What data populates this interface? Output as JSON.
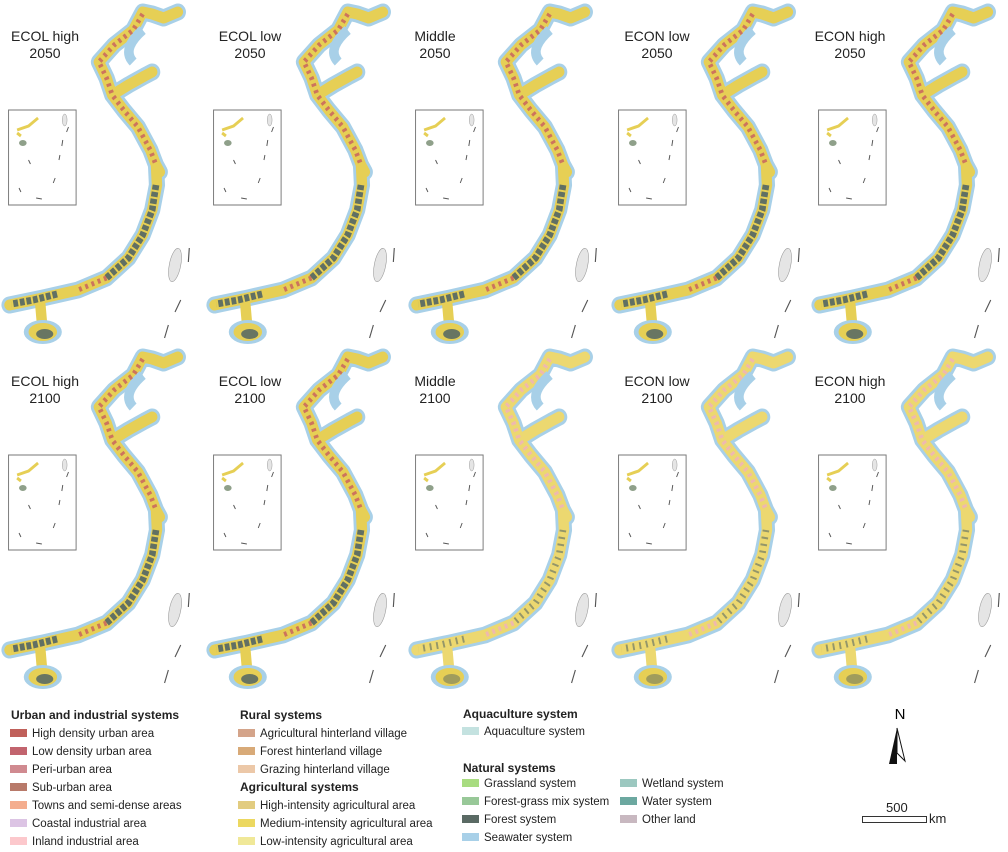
{
  "panels": [
    {
      "title_line1": "ECOL high",
      "title_line2": "2050",
      "variant": "a"
    },
    {
      "title_line1": "ECOL low",
      "title_line2": "2050",
      "variant": "a"
    },
    {
      "title_line1": "Middle",
      "title_line2": "2050",
      "variant": "a"
    },
    {
      "title_line1": "ECON low",
      "title_line2": "2050",
      "variant": "a"
    },
    {
      "title_line1": "ECON high",
      "title_line2": "2050",
      "variant": "a"
    },
    {
      "title_line1": "ECOL high",
      "title_line2": "2100",
      "variant": "a"
    },
    {
      "title_line1": "ECOL low",
      "title_line2": "2100",
      "variant": "a"
    },
    {
      "title_line1": "Middle",
      "title_line2": "2100",
      "variant": "b"
    },
    {
      "title_line1": "ECON low",
      "title_line2": "2100",
      "variant": "b"
    },
    {
      "title_line1": "ECON high",
      "title_line2": "2100",
      "variant": "b"
    }
  ],
  "legend": {
    "urban": {
      "heading": "Urban and industrial systems",
      "items": [
        {
          "label": "High density urban area",
          "color": "#c0605a"
        },
        {
          "label": "Low density urban area",
          "color": "#c2646e"
        },
        {
          "label": "Peri-urban area",
          "color": "#d08a90"
        },
        {
          "label": "Sub-urban area",
          "color": "#b87a6a"
        },
        {
          "label": "Towns and semi-dense areas",
          "color": "#f4ad8e"
        },
        {
          "label": "Coastal industrial area",
          "color": "#dcc4e4"
        },
        {
          "label": "Inland industrial area",
          "color": "#fcc8cc"
        }
      ]
    },
    "rural": {
      "heading": "Rural systems",
      "items": [
        {
          "label": "Agricultural hinterland village",
          "color": "#d4a48a"
        },
        {
          "label": "Forest hinterland village",
          "color": "#d8aa78"
        },
        {
          "label": "Grazing hinterland village",
          "color": "#ecc8a8"
        }
      ]
    },
    "agricultural": {
      "heading": "Agricultural systems",
      "items": [
        {
          "label": "High-intensity agricultural area",
          "color": "#e2cc80"
        },
        {
          "label": "Medium-intensity agricultural area",
          "color": "#ecd860"
        },
        {
          "label": "Low-intensity agricultural area",
          "color": "#f0e898"
        }
      ]
    },
    "aquaculture": {
      "heading": "Aquaculture system",
      "items": [
        {
          "label": "Aquaculture system",
          "color": "#c4e2e0"
        }
      ]
    },
    "natural": {
      "heading": "Natural systems",
      "items": [
        {
          "label": "Grassland system",
          "color": "#a8dc80"
        },
        {
          "label": "Forest-grass mix system",
          "color": "#98c898"
        },
        {
          "label": "Forest system",
          "color": "#5a6a64"
        },
        {
          "label": "Seawater system",
          "color": "#a8d0e8"
        },
        {
          "label": "Wetland system",
          "color": "#9cc8c0"
        },
        {
          "label": "Water system",
          "color": "#6ca8a0"
        },
        {
          "label": "Other land",
          "color": "#c8b8c0"
        }
      ]
    }
  },
  "north_arrow": {
    "label": "N"
  },
  "scale_bar": {
    "value": "500",
    "unit": "km"
  }
}
